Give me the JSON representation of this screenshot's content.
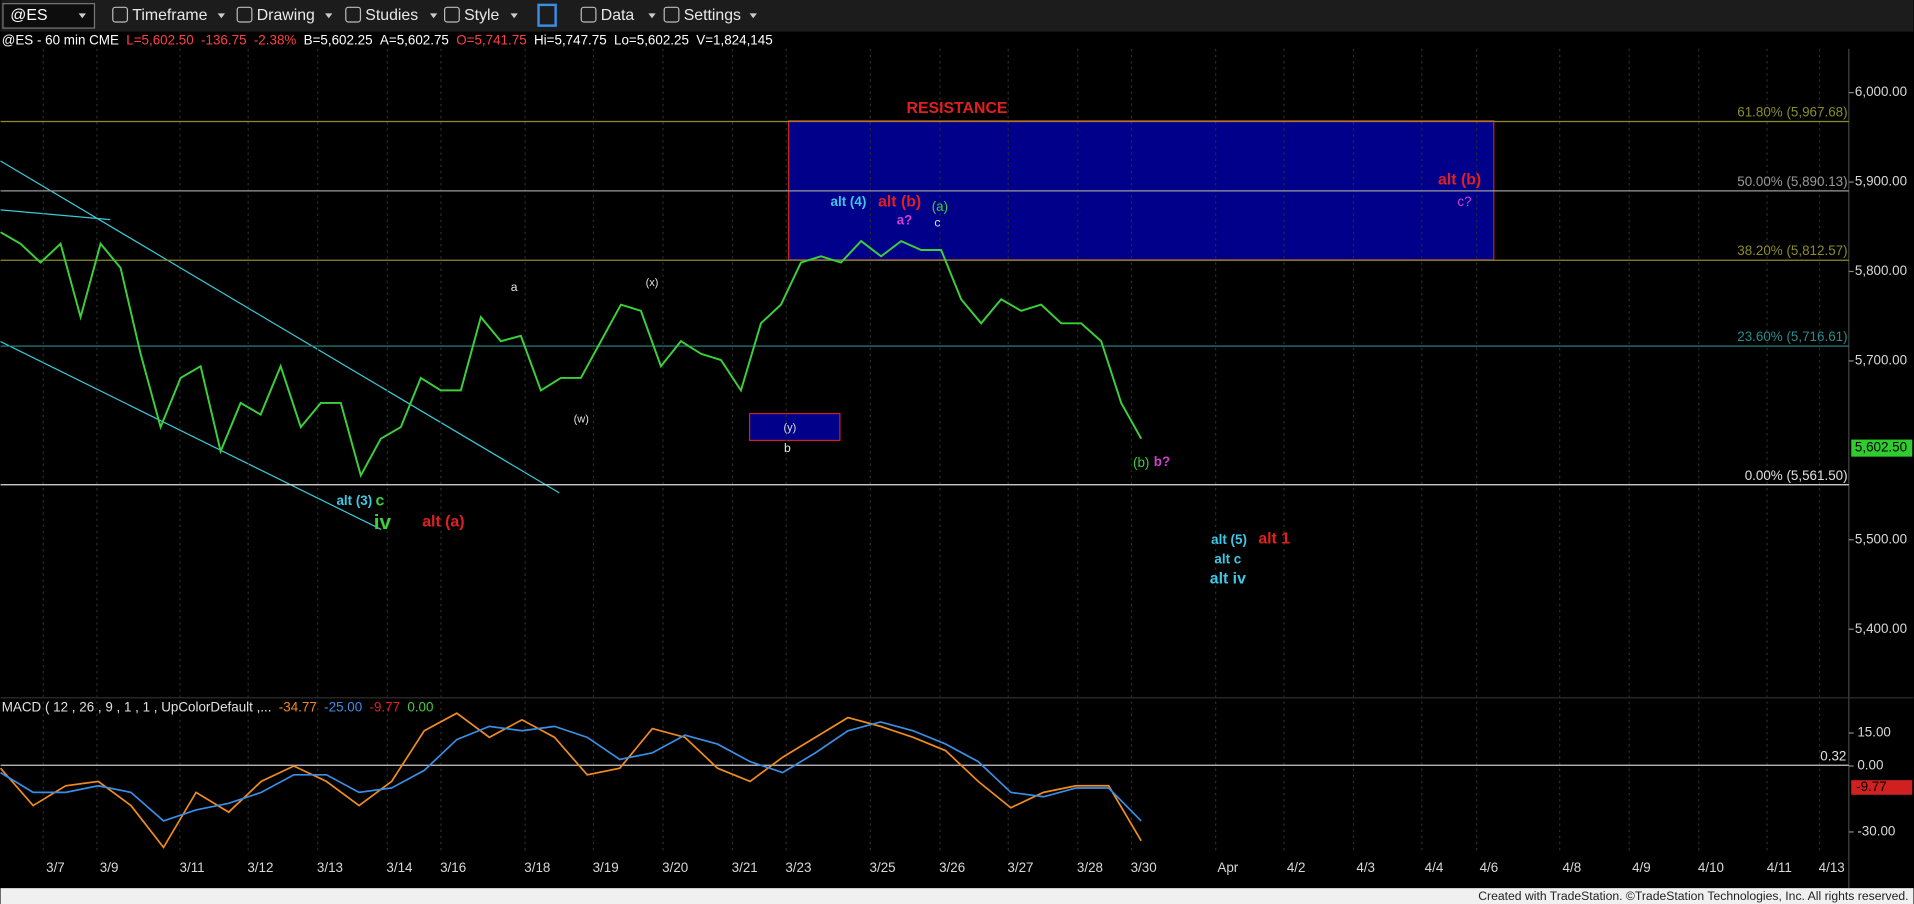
{
  "toolbar": {
    "symbol": "@ES",
    "menus": [
      "Timeframe",
      "Drawing",
      "Studies",
      "Style",
      "Data",
      "Settings"
    ]
  },
  "chart_data": {
    "type": "line",
    "header": [
      {
        "text": "@ES - 60 min  CME",
        "color": "#ffffff"
      },
      {
        "text": "L=5,602.50",
        "color": "#ff4040"
      },
      {
        "text": "-136.75",
        "color": "#ff4040"
      },
      {
        "text": "-2.38%",
        "color": "#ff4040"
      },
      {
        "text": "B=5,602.25",
        "color": "#ffffff"
      },
      {
        "text": "A=5,602.75",
        "color": "#ffffff"
      },
      {
        "text": "O=5,741.75",
        "color": "#ff4040"
      },
      {
        "text": "Hi=5,747.75",
        "color": "#ffffff"
      },
      {
        "text": "Lo=5,602.25",
        "color": "#ffffff"
      },
      {
        "text": "V=1,824,145",
        "color": "#ffffff"
      }
    ],
    "x_labels": [
      "3/7",
      "3/9",
      "3/11",
      "3/12",
      "3/13",
      "3/14",
      "3/16",
      "3/18",
      "3/19",
      "3/20",
      "3/21",
      "3/23",
      "3/25",
      "3/26",
      "3/27",
      "3/28",
      "3/30",
      "Apr",
      "4/2",
      "4/3",
      "4/4",
      "4/6",
      "4/8",
      "4/9",
      "4/10",
      "4/11",
      "4/13"
    ],
    "price": {
      "color": "#3ccf3c",
      "values": [
        5844,
        5831,
        5810,
        5831,
        5749,
        5831,
        5804,
        5708,
        5626,
        5681,
        5694,
        5599,
        5653,
        5640,
        5694,
        5626,
        5653,
        5653,
        5572,
        5613,
        5626,
        5681,
        5667,
        5667,
        5749,
        5722,
        5728,
        5667,
        5681,
        5681,
        5722,
        5763,
        5756,
        5694,
        5722,
        5708,
        5701,
        5667,
        5742,
        5763,
        5810,
        5817,
        5810,
        5834,
        5817,
        5834,
        5824,
        5824,
        5769,
        5742,
        5769,
        5756,
        5763,
        5742,
        5742,
        5722,
        5653,
        5613
      ]
    },
    "ylim": [
      5326,
      6049
    ],
    "yticks": [
      {
        "value": 6000,
        "label": "6,000.00"
      },
      {
        "value": 5900,
        "label": "5,900.00"
      },
      {
        "value": 5800,
        "label": "5,800.00"
      },
      {
        "value": 5700,
        "label": "5,700.00"
      },
      {
        "value": 5500,
        "label": "5,500.00"
      },
      {
        "value": 5400,
        "label": "5,400.00"
      }
    ],
    "last_price": {
      "value": 5602.5,
      "label": "5,602.50",
      "color": "#2ecc2e"
    },
    "fib_levels": [
      {
        "value": 5967.68,
        "label": "61.80% (5,967.68)",
        "color": "#8c8c2a"
      },
      {
        "value": 5890.13,
        "label": "50.00% (5,890.13)",
        "color": "#9a9a9a"
      },
      {
        "value": 5812.57,
        "label": "38.20% (5,812.57)",
        "color": "#8c8c2a"
      },
      {
        "value": 5716.61,
        "label": "23.60% (5,716.61)",
        "color": "#2a8c8c"
      },
      {
        "value": 5561.5,
        "label": "0.00% (5,561.50)",
        "color": "#e0e0e0"
      }
    ],
    "annotations": [
      {
        "text": "RESISTANCE",
        "color": "#e02020"
      },
      {
        "text": "alt (4)",
        "color": "#3cc8e6"
      },
      {
        "text": "alt (b)",
        "color": "#e02020"
      },
      {
        "text": "a?",
        "color": "#d040d0"
      },
      {
        "text": "(a)",
        "color": "#3ccf3c"
      },
      {
        "text": "c",
        "color": "#e0e0e0"
      },
      {
        "text": "alt (b)",
        "color": "#e02020"
      },
      {
        "text": "c?",
        "color": "#d040d0"
      },
      {
        "text": "a",
        "color": "#e0e0e0"
      },
      {
        "text": "(x)",
        "color": "#e0e0e0"
      },
      {
        "text": "(w)",
        "color": "#e0e0e0"
      },
      {
        "text": "(y)",
        "color": "#e0e0e0"
      },
      {
        "text": "b",
        "color": "#e0e0e0"
      },
      {
        "text": "(b)",
        "color": "#3ccf3c"
      },
      {
        "text": "b?",
        "color": "#d040d0"
      },
      {
        "text": "alt (3)",
        "color": "#3cc8e6"
      },
      {
        "text": "c",
        "color": "#3ccf3c"
      },
      {
        "text": "iv",
        "color": "#3ccf3c"
      },
      {
        "text": "alt (a)",
        "color": "#e02020"
      },
      {
        "text": "alt (5)",
        "color": "#3cc8e6"
      },
      {
        "text": "alt 1",
        "color": "#e02020"
      },
      {
        "text": "alt c",
        "color": "#3cc8e6"
      },
      {
        "text": "alt iv",
        "color": "#3cc8e6"
      }
    ],
    "macd": {
      "title": "MACD ( 12 , 26 , 9 , 1 , 1 , UpColorDefault ,...",
      "readouts": [
        {
          "value": -34.77,
          "label": "-34.77",
          "color": "#f08c1e"
        },
        {
          "value": -25.0,
          "label": "-25.00",
          "color": "#3a8ee6"
        },
        {
          "value": -9.77,
          "label": "-9.77",
          "color": "#e02020"
        },
        {
          "value": 0.0,
          "label": "0.00",
          "color": "#3ccf3c"
        }
      ],
      "ylim": [
        -50,
        31
      ],
      "yticks": [
        {
          "value": 15,
          "label": "15.00"
        },
        {
          "value": 0,
          "label": "0.00"
        },
        {
          "value": -30,
          "label": "-30.00"
        }
      ],
      "series": [
        {
          "color": "#f08c1e",
          "values": [
            -1,
            -18,
            -9,
            -7,
            -18,
            -37,
            -12,
            -21,
            -7,
            0,
            -7,
            -18,
            -7,
            16,
            24,
            13,
            21,
            13,
            -4,
            -1,
            17,
            13,
            -1,
            -7,
            4,
            13,
            22,
            18,
            13,
            7,
            -7,
            -19,
            -12,
            -9,
            -9,
            -34
          ]
        },
        {
          "color": "#3a8ee6",
          "values": [
            -3,
            -12,
            -12,
            -9,
            -12,
            -25,
            -20,
            -17,
            -12,
            -4,
            -4,
            -12,
            -10,
            -2,
            12,
            18,
            16,
            18,
            13,
            3,
            6,
            14,
            10,
            2,
            -3,
            6,
            16,
            20,
            16,
            10,
            2,
            -12,
            -14,
            -10,
            -10,
            -25
          ]
        }
      ],
      "zero_line": {
        "value": 0.32,
        "label": "0.32"
      },
      "current": {
        "value": -9.77,
        "label": "-9.77"
      }
    }
  },
  "footer": "Created with TradeStation. ©TradeStation Technologies, Inc. All rights reserved."
}
